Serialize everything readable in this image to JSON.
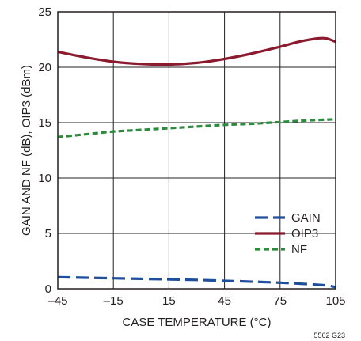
{
  "chart_data": {
    "type": "line",
    "xlabel": "CASE TEMPERATURE (°C)",
    "ylabel": "GAIN AND NF (dB), OIP3 (dBm)",
    "xlim": [
      -45,
      105
    ],
    "ylim": [
      0,
      25
    ],
    "x_ticks": [
      -45,
      -15,
      15,
      45,
      75,
      105
    ],
    "x_tick_labels": [
      "–45",
      "–15",
      "15",
      "45",
      "75",
      "105"
    ],
    "y_ticks": [
      0,
      5,
      10,
      15,
      20,
      25
    ],
    "y_tick_labels": [
      "0",
      "5",
      "10",
      "15",
      "20",
      "25"
    ],
    "grid": true,
    "legend_position": "bottom-right",
    "series": [
      {
        "name": "GAIN",
        "color": "#1f4e9c",
        "dash": "long-dash",
        "x": [
          -45,
          -30,
          -15,
          0,
          15,
          30,
          45,
          60,
          75,
          90,
          100,
          105
        ],
        "y": [
          1.05,
          1.0,
          0.95,
          0.9,
          0.85,
          0.8,
          0.72,
          0.64,
          0.55,
          0.42,
          0.3,
          0.15
        ]
      },
      {
        "name": "OIP3",
        "color": "#8b1a2f",
        "dash": "solid",
        "x": [
          -45,
          -30,
          -15,
          0,
          15,
          30,
          45,
          60,
          75,
          85,
          95,
          100,
          105
        ],
        "y": [
          21.4,
          20.9,
          20.5,
          20.3,
          20.25,
          20.4,
          20.75,
          21.25,
          21.85,
          22.3,
          22.6,
          22.6,
          22.3
        ]
      },
      {
        "name": "NF",
        "color": "#2e8b3e",
        "dash": "short-dash",
        "x": [
          -45,
          -30,
          -15,
          0,
          15,
          30,
          45,
          60,
          75,
          90,
          105
        ],
        "y": [
          13.7,
          13.95,
          14.2,
          14.35,
          14.5,
          14.65,
          14.8,
          14.9,
          15.05,
          15.2,
          15.3
        ]
      }
    ]
  },
  "figure_code": "5562 G23"
}
